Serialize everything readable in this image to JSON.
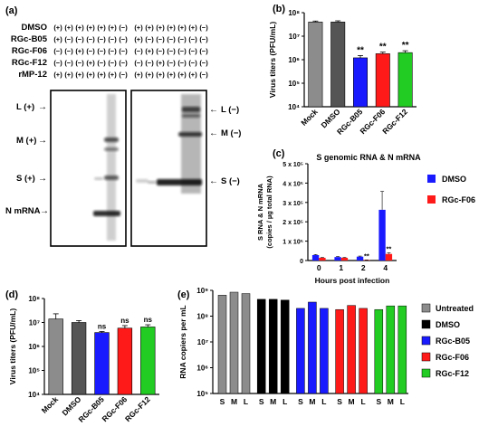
{
  "panels": {
    "a": {
      "letter": "(a)",
      "row_labels": [
        "DMSO",
        "RGc-B05",
        "RGc-F06",
        "RGc-F12",
        "rMP-12"
      ],
      "left_gel_matrix": [
        [
          "(+)",
          "(+)",
          "(+)",
          "(+)",
          "(+)",
          "(+)",
          "(−)"
        ],
        [
          "(+)",
          "(−)",
          "(−)",
          "(−)",
          "(−)",
          "(−)",
          "(−)"
        ],
        [
          "(−)",
          "(−)",
          "(+)",
          "(−)",
          "(−)",
          "(−)",
          "(−)"
        ],
        [
          "(−)",
          "(−)",
          "(−)",
          "(+)",
          "(−)",
          "(−)",
          "(−)"
        ],
        [
          "(+)",
          "(+)",
          "(+)",
          "(+)",
          "(+)",
          "(+)",
          "(−)"
        ]
      ],
      "right_gel_matrix": [
        [
          "(+)",
          "(+)",
          "(+)",
          "(+)",
          "(+)",
          "(+)",
          "(−)"
        ],
        [
          "(+)",
          "(−)",
          "(−)",
          "(−)",
          "(−)",
          "(−)",
          "(−)"
        ],
        [
          "(−)",
          "(+)",
          "(−)",
          "(−)",
          "(−)",
          "(−)",
          "(−)"
        ],
        [
          "(−)",
          "(−)",
          "(+)",
          "(−)",
          "(−)",
          "(−)",
          "(−)"
        ],
        [
          "(+)",
          "(+)",
          "(+)",
          "(+)",
          "(+)",
          "(+)",
          "(−)"
        ]
      ],
      "left_band_labels": [
        "L (+)",
        "M (+)",
        "S (+)",
        "N mRNA"
      ],
      "right_band_labels": [
        "L (−)",
        "M (−)",
        "S (−)"
      ]
    },
    "e_legend": [
      "Untreated",
      "DMSO",
      "RGc-B05",
      "RGc-F06",
      "RGc-F12"
    ],
    "c_legend": [
      "DMSO",
      "RGc-F06"
    ]
  },
  "chart_data": [
    {
      "panel": "(b)",
      "type": "bar",
      "categories": [
        "Mock",
        "DMSO",
        "RGc-B05",
        "RGc-F06",
        "RGc-F12"
      ],
      "values": [
        40000000.0,
        40000000.0,
        1200000.0,
        1800000.0,
        2000000.0
      ],
      "errors": [
        4000000.0,
        5000000.0,
        300000.0,
        300000.0,
        400000.0
      ],
      "colors": [
        "#8c8c8c",
        "#555555",
        "#1a1aff",
        "#ff1a1a",
        "#22cc22"
      ],
      "significance": [
        "",
        "",
        "**",
        "**",
        "**"
      ],
      "ylabel": "Virus titers (PFU/mL)",
      "yscale": "log",
      "ylim": [
        10000.0,
        100000000.0
      ],
      "yticks": [
        "10⁴",
        "10⁵",
        "10⁶",
        "10⁷",
        "10⁸"
      ]
    },
    {
      "panel": "(c)",
      "type": "bar",
      "title": "S genomic RNA & N mRNA",
      "categories": [
        "0",
        "1",
        "2",
        "4"
      ],
      "xlabel": "Hours post infection",
      "ylabel": "S RNA & N mRNA\n(copies / µg total RNA)",
      "ylim": [
        0,
        500000.0
      ],
      "yticks": [
        "0",
        "1 x 10⁵",
        "2 x 10⁵",
        "3 x 10⁵",
        "4 x 10⁵",
        "5 x 10⁵"
      ],
      "series": [
        {
          "name": "DMSO",
          "color": "#1a1aff",
          "values": [
            28000,
            18000,
            20000,
            262000
          ],
          "errors": [
            3000,
            3000,
            3000,
            95000
          ]
        },
        {
          "name": "RGc-F06",
          "color": "#ff1a1a",
          "values": [
            14000,
            14000,
            2000,
            34000
          ],
          "errors": [
            2000,
            2000,
            1000,
            6000
          ]
        }
      ],
      "significance": [
        "",
        "",
        "**",
        "**"
      ]
    },
    {
      "panel": "(d)",
      "type": "bar",
      "categories": [
        "Mock",
        "DMSO",
        "RGc-B05",
        "RGc-F06",
        "RGc-F12"
      ],
      "values": [
        14000000.0,
        10000000.0,
        3800000.0,
        5800000.0,
        6500000.0
      ],
      "errors": [
        9000000.0,
        2000000.0,
        400000.0,
        1600000.0,
        1500000.0
      ],
      "colors": [
        "#8c8c8c",
        "#555555",
        "#1a1aff",
        "#ff1a1a",
        "#22cc22"
      ],
      "significance": [
        "",
        "",
        "ns",
        "ns",
        "ns"
      ],
      "ylabel": "Virus titers (PFU/mL)",
      "yscale": "log",
      "ylim": [
        10000.0,
        100000000.0
      ],
      "yticks": [
        "10⁴",
        "10⁵",
        "10⁶",
        "10⁷",
        "10⁸"
      ]
    },
    {
      "panel": "(e)",
      "type": "bar",
      "categories": [
        "S",
        "M",
        "L"
      ],
      "ylabel": "RNA copiers per mL",
      "yscale": "log",
      "ylim": [
        100000.0,
        1000000000.0
      ],
      "yticks": [
        "10⁵",
        "10⁶",
        "10⁷",
        "10⁸",
        "10⁹"
      ],
      "series": [
        {
          "name": "Untreated",
          "color": "#8c8c8c",
          "values": [
            650000000.0,
            850000000.0,
            750000000.0
          ]
        },
        {
          "name": "DMSO",
          "color": "#000000",
          "values": [
            450000000.0,
            450000000.0,
            420000000.0
          ]
        },
        {
          "name": "RGc-B05",
          "color": "#1a1aff",
          "values": [
            200000000.0,
            350000000.0,
            200000000.0
          ]
        },
        {
          "name": "RGc-F06",
          "color": "#ff1a1a",
          "values": [
            180000000.0,
            260000000.0,
            200000000.0
          ]
        },
        {
          "name": "RGc-F12",
          "color": "#22cc22",
          "values": [
            180000000.0,
            250000000.0,
            250000000.0
          ]
        }
      ]
    }
  ]
}
